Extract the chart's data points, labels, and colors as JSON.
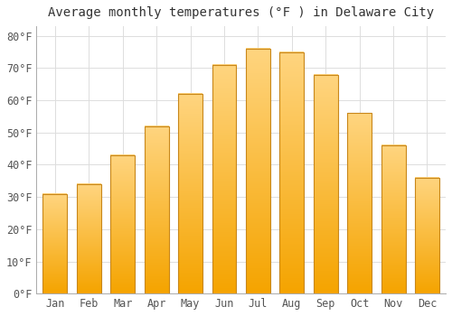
{
  "title": "Average monthly temperatures (°F ) in Delaware City",
  "months": [
    "Jan",
    "Feb",
    "Mar",
    "Apr",
    "May",
    "Jun",
    "Jul",
    "Aug",
    "Sep",
    "Oct",
    "Nov",
    "Dec"
  ],
  "values": [
    31,
    34,
    43,
    52,
    62,
    71,
    76,
    75,
    68,
    56,
    46,
    36
  ],
  "bar_color_top": "#FFD580",
  "bar_color_bottom": "#F5A400",
  "bar_edge_color": "#C8871A",
  "background_color": "#FFFFFF",
  "grid_color": "#DDDDDD",
  "ylim": [
    0,
    83
  ],
  "yticks": [
    0,
    10,
    20,
    30,
    40,
    50,
    60,
    70,
    80
  ],
  "ytick_labels": [
    "0°F",
    "10°F",
    "20°F",
    "30°F",
    "40°F",
    "50°F",
    "60°F",
    "70°F",
    "80°F"
  ],
  "title_fontsize": 10,
  "tick_fontsize": 8.5,
  "figsize": [
    5.0,
    3.5
  ],
  "dpi": 100
}
